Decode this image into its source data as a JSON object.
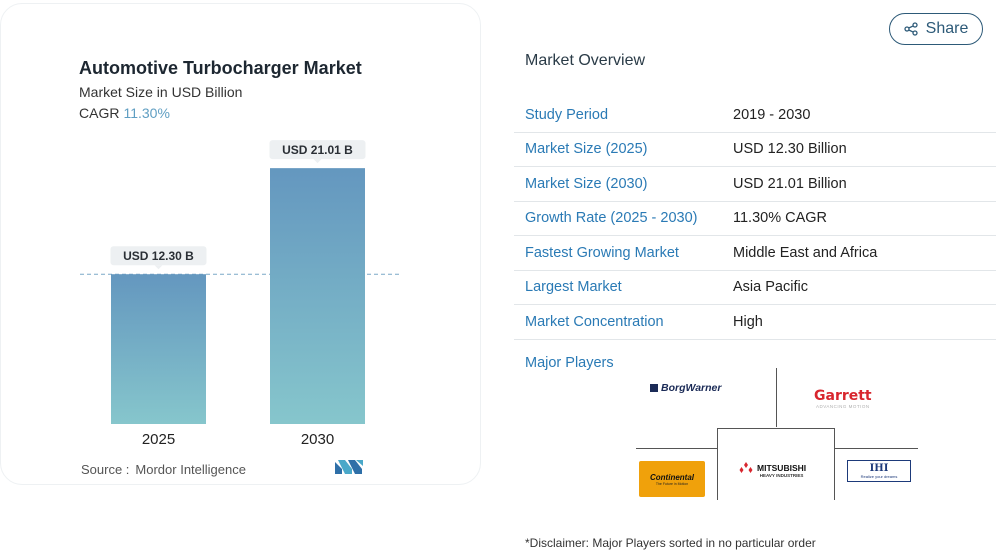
{
  "chart": {
    "title": "Automotive Turbocharger Market",
    "subtitle": "Market Size in USD Billion",
    "cagr_label": "CAGR",
    "cagr_value": "11.30%",
    "source_label": "Source :",
    "source_value": "Mordor Intelligence"
  },
  "chart_data": {
    "type": "bar",
    "title": "Automotive Turbocharger Market",
    "subtitle": "Market Size in USD Billion",
    "categories": [
      "2025",
      "2030"
    ],
    "values": [
      12.3,
      21.01
    ],
    "data_labels": [
      "USD 12.30 B",
      "USD 21.01 B"
    ],
    "reference_line_value": 12.3,
    "ylim": [
      0,
      22.5
    ],
    "grid": false,
    "colors": {
      "bar_top": "#6497bf",
      "bar_bottom": "#86c6cc",
      "label_bg": "#edf0f2",
      "ref_line": "#7aa8c7"
    }
  },
  "share": {
    "label": "Share",
    "icon": "share-icon"
  },
  "overview": {
    "title": "Market Overview",
    "rows": [
      {
        "key": "Study Period",
        "value": "2019 - 2030"
      },
      {
        "key": "Market Size (2025)",
        "value": "USD 12.30 Billion"
      },
      {
        "key": "Market Size (2030)",
        "value": "USD 21.01 Billion"
      },
      {
        "key": "Growth Rate (2025 - 2030)",
        "value": "11.30% CAGR"
      },
      {
        "key": "Fastest Growing Market",
        "value": "Middle East and Africa"
      },
      {
        "key": "Largest Market",
        "value": "Asia Pacific"
      },
      {
        "key": "Market Concentration",
        "value": "High"
      }
    ]
  },
  "major_players": {
    "title": "Major Players",
    "borgwarner": "BorgWarner",
    "garrett": "Garrett",
    "garrett_tag": "ADVANCING MOTION",
    "continental": "Continental",
    "continental_tag": "The Future in Motion",
    "mitsubishi": "MITSUBISHI",
    "mitsubishi_sub": "HEAVY INDUSTRIES",
    "ihi": "IHI",
    "ihi_tag": "Realize your dreams"
  },
  "disclaimer": "*Disclaimer: Major Players sorted in no particular order"
}
